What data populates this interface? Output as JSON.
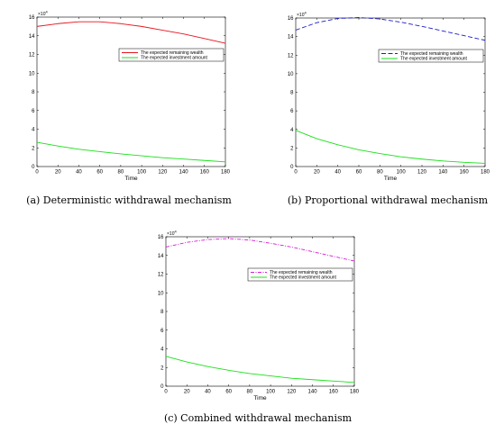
{
  "chart_data": [
    {
      "type": "line",
      "panel_id": "a",
      "caption": "(a) Deterministic withdrawal mechanism",
      "xlabel": "Time",
      "ylabel": "",
      "y_exponent_label": "×10",
      "y_exponent_power": "4",
      "xlim": [
        0,
        180
      ],
      "ylim": [
        0,
        16
      ],
      "x_ticks": [
        0,
        20,
        40,
        60,
        80,
        100,
        120,
        140,
        160,
        180
      ],
      "y_ticks": [
        0,
        2,
        4,
        6,
        8,
        10,
        12,
        14,
        16
      ],
      "x": [
        0,
        20,
        40,
        60,
        80,
        100,
        120,
        140,
        160,
        180
      ],
      "grid": false,
      "legend_position": "upper-right",
      "series": [
        {
          "name": "The expected remaining wealth",
          "color": "#e8141e",
          "dash": "solid",
          "values": [
            15.0,
            15.3,
            15.5,
            15.5,
            15.3,
            15.0,
            14.6,
            14.2,
            13.7,
            13.2
          ]
        },
        {
          "name": "The expected investment amount",
          "color": "#18e018",
          "dash": "solid",
          "values": [
            2.6,
            2.2,
            1.85,
            1.6,
            1.35,
            1.15,
            0.95,
            0.8,
            0.65,
            0.5
          ]
        }
      ]
    },
    {
      "type": "line",
      "panel_id": "b",
      "caption": "(b) Proportional withdrawal mechanism",
      "xlabel": "Time",
      "ylabel": "",
      "y_exponent_label": "×10",
      "y_exponent_power": "4",
      "xlim": [
        0,
        180
      ],
      "ylim": [
        0,
        16
      ],
      "x_ticks": [
        0,
        20,
        40,
        60,
        80,
        100,
        120,
        140,
        160,
        180
      ],
      "y_ticks": [
        0,
        2,
        4,
        6,
        8,
        10,
        12,
        14,
        16
      ],
      "x": [
        0,
        20,
        40,
        60,
        80,
        100,
        120,
        140,
        160,
        180
      ],
      "grid": false,
      "legend_position": "upper-right",
      "series": [
        {
          "name": "The expected remaining wealth",
          "color": "#1c1cc8",
          "dash": "dashed",
          "values": [
            14.7,
            15.5,
            15.95,
            16.05,
            15.9,
            15.55,
            15.1,
            14.6,
            14.1,
            13.6
          ]
        },
        {
          "name": "The expected investment amount",
          "color": "#18e018",
          "dash": "solid",
          "values": [
            3.9,
            3.0,
            2.35,
            1.8,
            1.4,
            1.05,
            0.8,
            0.6,
            0.45,
            0.35
          ]
        }
      ]
    },
    {
      "type": "line",
      "panel_id": "c",
      "caption": "(c) Combined withdrawal mechanism",
      "xlabel": "Time",
      "ylabel": "",
      "y_exponent_label": "×10",
      "y_exponent_power": "4",
      "xlim": [
        0,
        180
      ],
      "ylim": [
        0,
        16
      ],
      "x_ticks": [
        0,
        20,
        40,
        60,
        80,
        100,
        120,
        140,
        160,
        180
      ],
      "y_ticks": [
        0,
        2,
        4,
        6,
        8,
        10,
        12,
        14,
        16
      ],
      "x": [
        0,
        20,
        40,
        60,
        80,
        100,
        120,
        140,
        160,
        180
      ],
      "grid": false,
      "legend_position": "upper-right",
      "series": [
        {
          "name": "The expected remaining wealth",
          "color": "#d21ed2",
          "dash": "dashdot",
          "values": [
            14.9,
            15.4,
            15.7,
            15.8,
            15.65,
            15.3,
            14.9,
            14.4,
            13.9,
            13.4
          ]
        },
        {
          "name": "The expected investment amount",
          "color": "#18e018",
          "dash": "solid",
          "values": [
            3.2,
            2.6,
            2.1,
            1.7,
            1.35,
            1.1,
            0.85,
            0.7,
            0.55,
            0.4
          ]
        }
      ]
    }
  ]
}
